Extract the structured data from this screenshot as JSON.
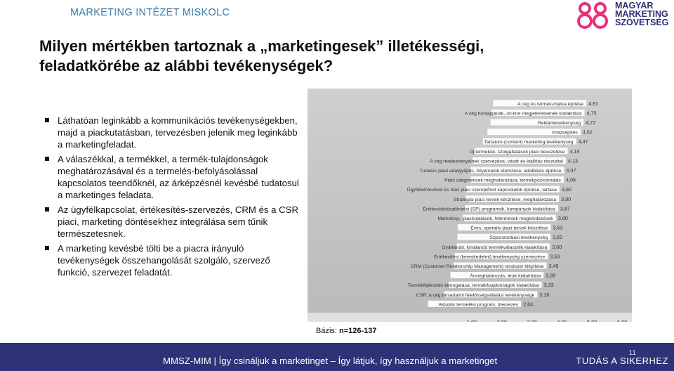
{
  "header": {
    "institute": "MARKETING INTÉZET MISKOLC"
  },
  "logo": {
    "line1": "MAGYAR",
    "line2": "MARKETING",
    "line3": "SZÖVETSÉG"
  },
  "title": "Milyen mértékben tartoznak a „marketingesek” illetékességi, feladatkörébe az alábbi tevékenységek?",
  "bullets": [
    "Láthatóan leginkább a kommunikációs tevékenységekben, majd a piackutatásban, tervezésben jelenik meg leginkább a marketingfeladat.",
    "A válaszékkal, a termékkel, a termék-tulajdonságok meghatározásával és a termelés-befolyásolással kapcsolatos teendőknél, az árképzésnél kevésbé tudatosul a marketinges feladata.",
    "Az ügyfélkapcsolat, értékesítés-szervezés, CRM és a CSR piaci, marketing döntésekhez integrálása sem tűnik természetesnek.",
    "A marketing kevésbé tölti be a piacra irányuló tevékenységek összehangolását szolgáló, szervező funkció, szervezet feladatát."
  ],
  "chart_data": {
    "type": "bar",
    "orientation": "horizontal",
    "categories": [
      "A cég és termék-márka építése",
      "A cég honlapjának, on-line megjelenéseinek kialakítása",
      "Reklámtevékenység",
      "Imázsépítés",
      "Tartalom-(content) marketing tevékenység",
      "Új termékek, szolgáltatások piaci bevezetése",
      "A cég rendezvényeinek szervezése, vásár és kiállítás részvétel",
      "Tudatos piaci adatgyűjtés, folyamatok elemzése, adatbázis építése",
      "Piaci szegmensek meghatározása, termékpozícionálás",
      "Ügyféllel/vevővel és más piaci szereplővel kapcsolatok építése, tartása",
      "Stratégiai piaci tervek készítése, meghatározása",
      "Értékesítésösztönzési (SP) programok, kampányok kialakítása",
      "Marketing-, piackutatások, felmérések megkérdezések",
      "Éves, operatív piaci tervek készítése",
      "Szponzorálási tevékenység",
      "Gyártandó, kínálandó termékválaszték kialakítása",
      "Értékesítési (kereskedelmi) tevékenység szervezése",
      "CRM (Customer Relationship Management) rendszer kiépítése",
      "Ármeghatározás, árak kialakítása",
      "Termékfejlesztés támogatása, termékfuajdonságok kialakítása",
      "CSR, a cég társadalmi felelősségvállalási tevékenysége",
      "Aktuális termelési program, ütemezés"
    ],
    "values": [
      4.81,
      4.75,
      4.72,
      4.62,
      4.47,
      4.19,
      4.13,
      4.07,
      4.06,
      3.92,
      3.9,
      3.87,
      3.8,
      3.63,
      3.62,
      3.6,
      3.53,
      3.49,
      3.39,
      3.33,
      3.18,
      2.64
    ],
    "value_labels": [
      "4,81",
      "4,75",
      "4,72",
      "4,62",
      "4,47",
      "4,19",
      "4,13",
      "4,07",
      "4,06",
      "3,92",
      "3,90",
      "3,87",
      "3,80",
      "3,63",
      "3,62",
      "3,60",
      "3,53",
      "3,49",
      "3,39",
      "3,33",
      "3,18",
      "2,64"
    ],
    "x_ticks": [
      "1,00",
      "2,00",
      "3,00",
      "4,00",
      "5,00",
      "6,00"
    ],
    "xlim": [
      1,
      6
    ],
    "bar_color": "#ffffff",
    "panel_color": "#c4c5c6"
  },
  "basis": {
    "label": "Bázis: ",
    "value": "n=126-137"
  },
  "footer": {
    "text": "MMSZ-MIM |  Így csináljuk a marketinget – Így látjuk, így használjuk a marketinget",
    "right": "TUDÁS A SIKERHEZ",
    "page": "11"
  },
  "colors": {
    "footer_bg": "#2e3277",
    "accent": "#2b6f9e",
    "logo_pink": "#e5317f"
  }
}
